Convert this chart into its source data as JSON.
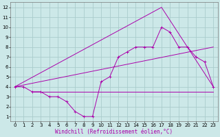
{
  "xlabel": "Windchill (Refroidissement éolien,°C)",
  "background_color": "#cce8e8",
  "grid_color": "#aacccc",
  "line_color": "#aa00aa",
  "xlim": [
    -0.5,
    23.5
  ],
  "ylim": [
    0.5,
    12.5
  ],
  "xticks": [
    0,
    1,
    2,
    3,
    4,
    5,
    6,
    7,
    8,
    9,
    10,
    11,
    12,
    13,
    14,
    15,
    16,
    17,
    18,
    19,
    20,
    21,
    22,
    23
  ],
  "yticks": [
    1,
    2,
    3,
    4,
    5,
    6,
    7,
    8,
    9,
    10,
    11,
    12
  ],
  "line1_x": [
    0,
    1,
    2,
    3,
    4,
    5,
    6,
    7,
    8,
    9,
    10,
    11,
    12,
    13,
    14,
    15,
    16,
    17,
    18,
    19,
    20,
    21,
    22,
    23
  ],
  "line1_y": [
    4,
    4,
    3.5,
    3.5,
    3,
    3,
    2.5,
    1.5,
    1,
    1,
    4.5,
    5,
    7,
    7.5,
    8,
    8,
    8,
    10,
    9.5,
    8,
    8,
    7,
    6.5,
    4
  ],
  "line2_x": [
    0,
    23
  ],
  "line2_y": [
    4,
    8
  ],
  "line3_x": [
    0,
    17,
    23
  ],
  "line3_y": [
    4,
    12,
    4
  ],
  "flat_line_x": [
    2,
    23
  ],
  "flat_line_y": [
    3.5,
    3.5
  ],
  "tick_fontsize": 5,
  "xlabel_fontsize": 5.5
}
